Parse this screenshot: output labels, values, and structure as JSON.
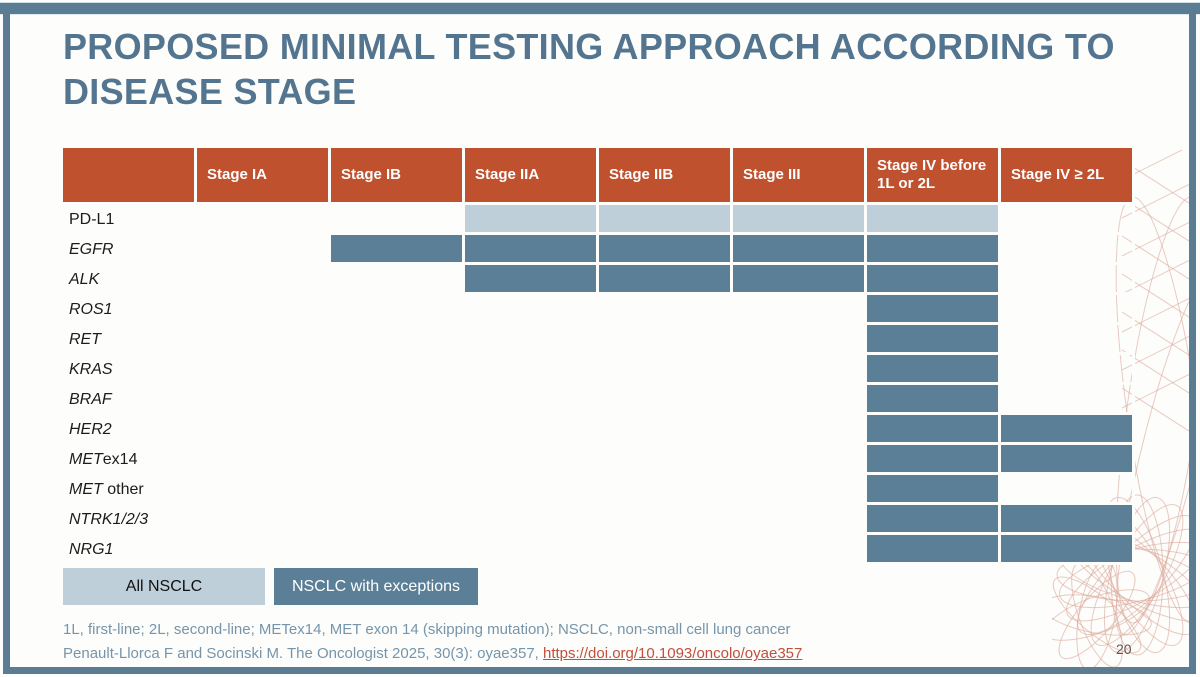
{
  "slide": {
    "title_line1": "PROPOSED MINIMAL TESTING APPROACH ACCORDING TO",
    "title_line2": "DISEASE STAGE",
    "page_number": "20"
  },
  "table": {
    "columns": [
      "Stage IA",
      "Stage IB",
      "Stage IIA",
      "Stage IIB",
      "Stage III",
      "Stage IV before 1L or 2L",
      "Stage IV ≥ 2L"
    ],
    "rows": [
      {
        "label": [
          {
            "text": "PD-L1",
            "italic": false
          }
        ],
        "fills": [
          "",
          "",
          "all",
          "all",
          "all",
          "all",
          ""
        ]
      },
      {
        "label": [
          {
            "text": "EGFR",
            "italic": true
          }
        ],
        "fills": [
          "",
          "exc",
          "exc",
          "exc",
          "exc",
          "exc",
          ""
        ]
      },
      {
        "label": [
          {
            "text": "ALK",
            "italic": true
          }
        ],
        "fills": [
          "",
          "",
          "exc",
          "exc",
          "exc",
          "exc",
          ""
        ]
      },
      {
        "label": [
          {
            "text": "ROS1",
            "italic": true
          }
        ],
        "fills": [
          "",
          "",
          "",
          "",
          "",
          "exc",
          ""
        ]
      },
      {
        "label": [
          {
            "text": "RET",
            "italic": true
          }
        ],
        "fills": [
          "",
          "",
          "",
          "",
          "",
          "exc",
          ""
        ]
      },
      {
        "label": [
          {
            "text": "KRAS",
            "italic": true
          }
        ],
        "fills": [
          "",
          "",
          "",
          "",
          "",
          "exc",
          ""
        ]
      },
      {
        "label": [
          {
            "text": "BRAF",
            "italic": true
          }
        ],
        "fills": [
          "",
          "",
          "",
          "",
          "",
          "exc",
          ""
        ]
      },
      {
        "label": [
          {
            "text": "HER2",
            "italic": true
          }
        ],
        "fills": [
          "",
          "",
          "",
          "",
          "",
          "exc",
          "exc"
        ]
      },
      {
        "label": [
          {
            "text": "MET",
            "italic": true
          },
          {
            "text": "ex14",
            "italic": false
          }
        ],
        "fills": [
          "",
          "",
          "",
          "",
          "",
          "exc",
          "exc"
        ]
      },
      {
        "label": [
          {
            "text": "MET",
            "italic": true
          },
          {
            "text": " other",
            "italic": false
          }
        ],
        "fills": [
          "",
          "",
          "",
          "",
          "",
          "exc",
          ""
        ]
      },
      {
        "label": [
          {
            "text": "NTRK1/2/3",
            "italic": true
          }
        ],
        "fills": [
          "",
          "",
          "",
          "",
          "",
          "exc",
          "exc"
        ]
      },
      {
        "label": [
          {
            "text": "NRG1",
            "italic": true
          }
        ],
        "fills": [
          "",
          "",
          "",
          "",
          "",
          "exc",
          "exc"
        ]
      }
    ]
  },
  "legend": {
    "all_label": "All NSCLC",
    "exceptions_label": "NSCLC with exceptions"
  },
  "footnotes": {
    "line1": "1L, first-line; 2L, second-line; METex14, MET exon 14 (skipping mutation); NSCLC, non-small cell lung cancer",
    "line2_prefix": "Penault-Llorca F and Socinski M. The Oncologist 2025, 30(3): oyae357, ",
    "line2_link": "https://doi.org/10.1093/oncolo/oyae357"
  },
  "colors": {
    "header_bg": "#c0512f",
    "all_nsclc": "#bfcfd9",
    "nsclc_exceptions": "#5b7f97",
    "title": "#54758f",
    "footnote": "#7695ab",
    "link": "#c0503c",
    "frame": "#5a7d93",
    "decoration": "#dca89b"
  }
}
